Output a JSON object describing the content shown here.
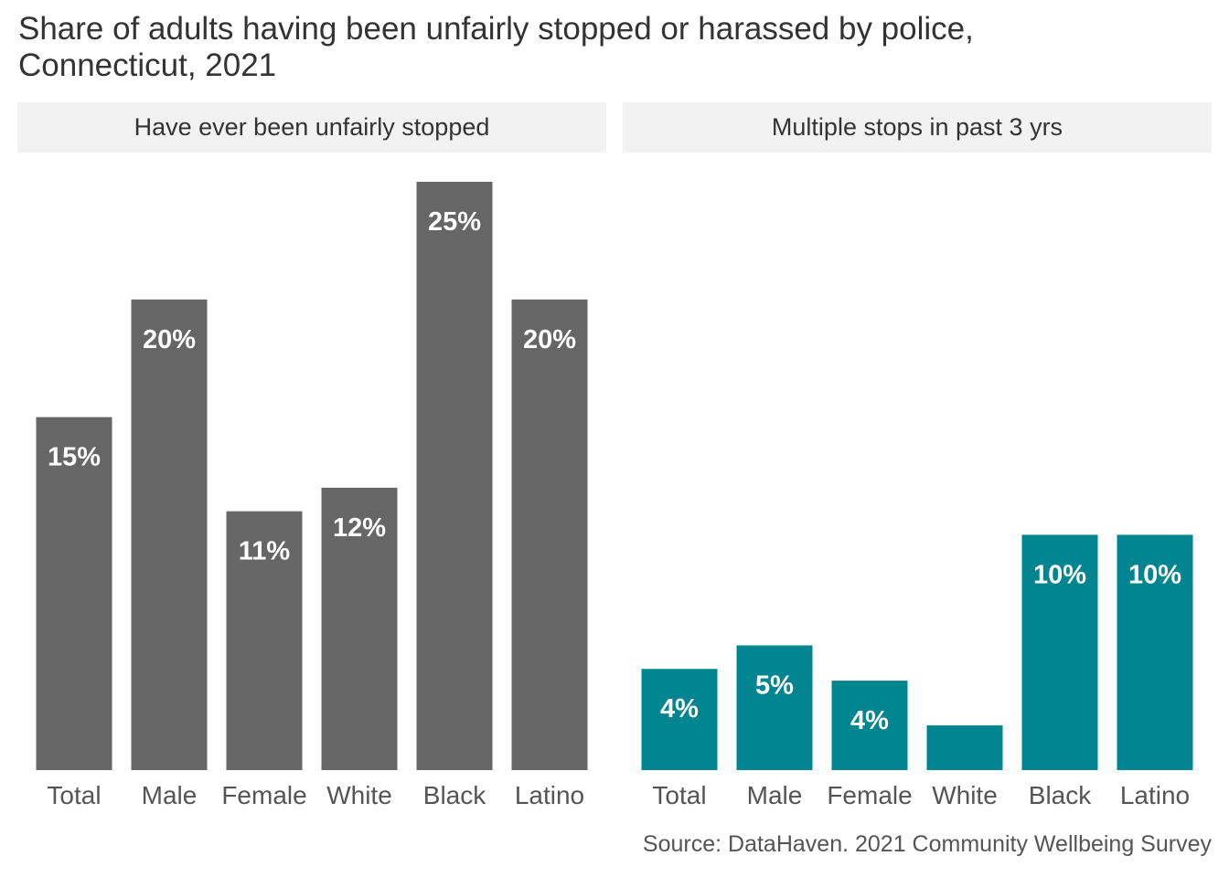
{
  "title_line1": "Share of adults having been unfairly stopped or harassed by police,",
  "title_line2": "Connecticut, 2021",
  "caption": "Source: DataHaven. 2021 Community Wellbeing Survey",
  "colors": {
    "panel_1_bar": "#666666",
    "panel_2_bar": "#008591",
    "strip_bg": "#f2f2f2",
    "strip_text": "#333333",
    "tick_text": "#555555",
    "label_text": "#ffffff"
  },
  "chart_data": [
    {
      "type": "bar",
      "panel": "Have ever been unfairly stopped",
      "categories": [
        "Total",
        "Male",
        "Female",
        "White",
        "Black",
        "Latino"
      ],
      "values": [
        15,
        20,
        11,
        12,
        25,
        20
      ],
      "labels": [
        "15%",
        "20%",
        "11%",
        "12%",
        "25%",
        "20%"
      ],
      "ylim": [
        0,
        25
      ],
      "grid": false,
      "y_axis_shown": false
    },
    {
      "type": "bar",
      "panel": "Multiple stops in past 3 yrs",
      "categories": [
        "Total",
        "Male",
        "Female",
        "White",
        "Black",
        "Latino"
      ],
      "values": [
        4.3,
        5.3,
        3.8,
        1.9,
        10,
        10
      ],
      "labels": [
        "4%",
        "5%",
        "4%",
        "",
        "10%",
        "10%"
      ],
      "ylim": [
        0,
        25
      ],
      "grid": false,
      "y_axis_shown": false
    }
  ]
}
